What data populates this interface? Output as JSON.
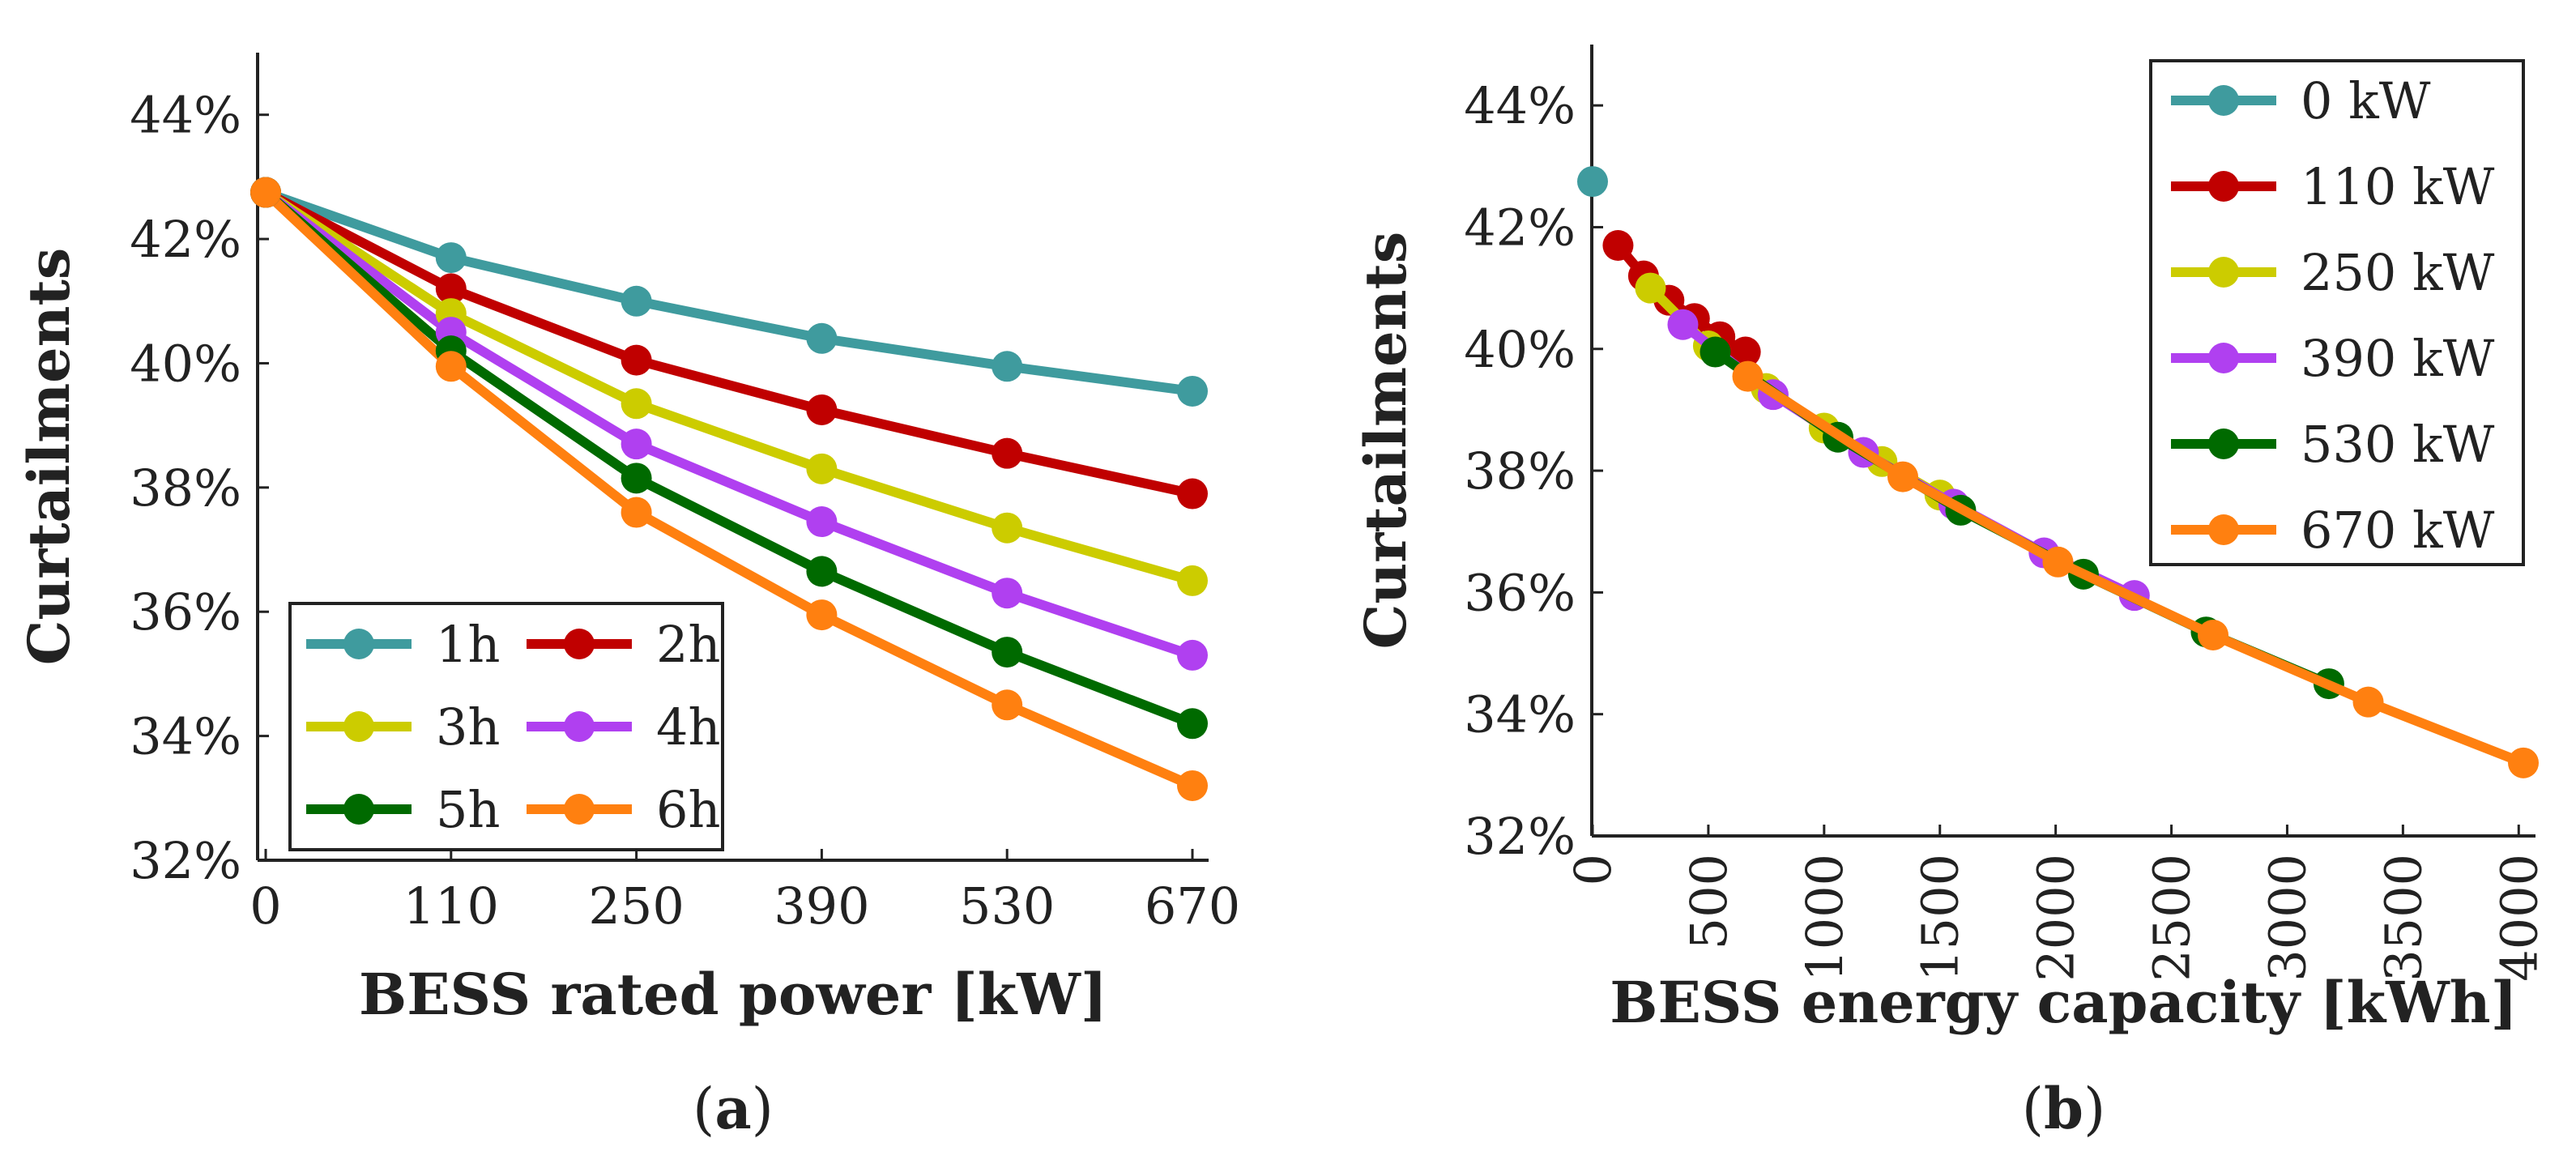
{
  "chart_data": [
    {
      "type": "line",
      "panel": "a",
      "panel_label": "a",
      "xlabel": "BESS rated power [kW]",
      "ylabel": "Curtailments",
      "categories": [
        "0",
        "110",
        "250",
        "390",
        "530",
        "670"
      ],
      "yticks": [
        "32%",
        "34%",
        "36%",
        "38%",
        "40%",
        "42%",
        "44%"
      ],
      "ylim": [
        32,
        45
      ],
      "legend_position": "bottom-left",
      "series": [
        {
          "name": "1h",
          "color": "#3f9b9e",
          "values": [
            42.75,
            41.7,
            41.0,
            40.4,
            39.95,
            39.55
          ]
        },
        {
          "name": "2h",
          "color": "#c00000",
          "values": [
            42.75,
            41.2,
            40.05,
            39.25,
            38.55,
            37.9
          ]
        },
        {
          "name": "3h",
          "color": "#cccc00",
          "values": [
            42.75,
            40.8,
            39.35,
            38.3,
            37.35,
            36.5
          ]
        },
        {
          "name": "4h",
          "color": "#b040f0",
          "values": [
            42.75,
            40.5,
            38.7,
            37.45,
            36.3,
            35.3
          ]
        },
        {
          "name": "5h",
          "color": "#006a00",
          "values": [
            42.75,
            40.2,
            38.15,
            36.65,
            35.35,
            34.2
          ]
        },
        {
          "name": "6h",
          "color": "#ff8010",
          "values": [
            42.75,
            39.95,
            37.6,
            35.95,
            34.5,
            33.2
          ]
        }
      ]
    },
    {
      "type": "line",
      "panel": "b",
      "panel_label": "b",
      "xlabel": "BESS energy capacity [kWh]",
      "ylabel": "Curtailments",
      "xticks": [
        "0",
        "500",
        "1000",
        "1500",
        "2000",
        "2500",
        "3000",
        "3500",
        "4000"
      ],
      "xlim": [
        0,
        4020
      ],
      "yticks": [
        "32%",
        "34%",
        "36%",
        "38%",
        "40%",
        "42%",
        "44%"
      ],
      "ylim": [
        32,
        45
      ],
      "legend_position": "top-right",
      "series": [
        {
          "name": "0 kW",
          "color": "#3f9b9e",
          "x": [
            0
          ],
          "y": [
            42.75
          ]
        },
        {
          "name": "110 kW",
          "color": "#c00000",
          "x": [
            110,
            220,
            330,
            440,
            550,
            660
          ],
          "y": [
            41.7,
            41.2,
            40.8,
            40.5,
            40.2,
            39.95
          ]
        },
        {
          "name": "250 kW",
          "color": "#cccc00",
          "x": [
            250,
            500,
            750,
            1000,
            1250,
            1500
          ],
          "y": [
            41.0,
            40.05,
            39.35,
            38.7,
            38.15,
            37.6
          ]
        },
        {
          "name": "390 kW",
          "color": "#b040f0",
          "x": [
            390,
            780,
            1170,
            1560,
            1950,
            2340
          ],
          "y": [
            40.4,
            39.25,
            38.3,
            37.45,
            36.65,
            35.95
          ]
        },
        {
          "name": "530 kW",
          "color": "#006a00",
          "x": [
            530,
            1060,
            1590,
            2120,
            2650,
            3180
          ],
          "y": [
            39.95,
            38.55,
            37.35,
            36.3,
            35.35,
            34.5
          ]
        },
        {
          "name": "670 kW",
          "color": "#ff8010",
          "x": [
            670,
            1340,
            2010,
            2680,
            3350,
            4020
          ],
          "y": [
            39.55,
            37.9,
            36.5,
            35.3,
            34.2,
            33.2
          ]
        }
      ]
    }
  ]
}
